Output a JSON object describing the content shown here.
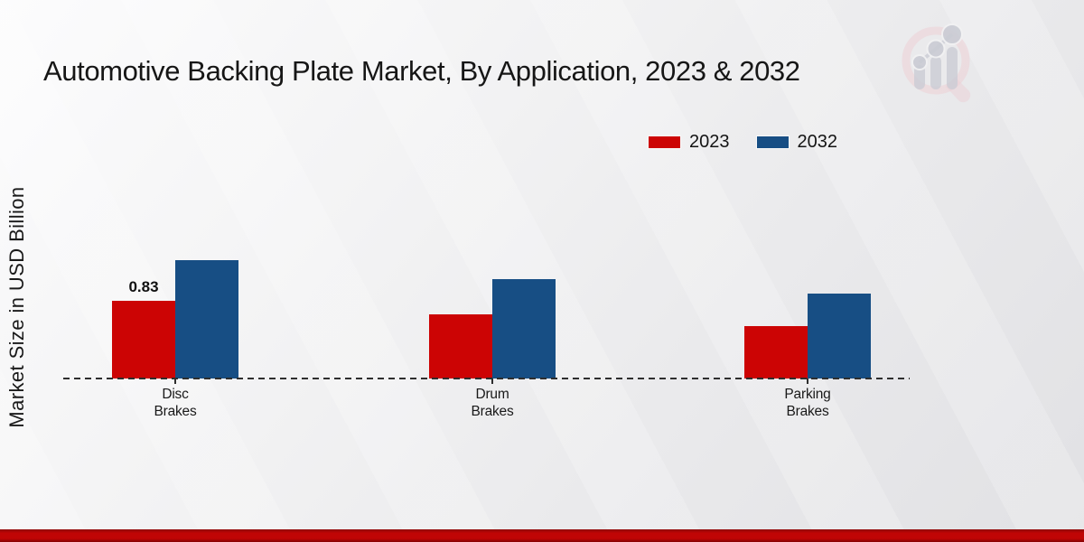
{
  "page": {
    "watermark_icon": "magnifier-bar-chart-logo"
  },
  "chart_data": {
    "type": "bar",
    "title": "Automotive Backing Plate Market, By Application, 2023 & 2032",
    "categories": [
      "Disc Brakes",
      "Drum Brakes",
      "Parking Brakes"
    ],
    "series": [
      {
        "name": "2023",
        "color": "#cc0404",
        "values": [
          0.83,
          0.68,
          0.56
        ]
      },
      {
        "name": "2032",
        "color": "#174e84",
        "values": [
          1.26,
          1.06,
          0.9
        ]
      }
    ],
    "annotations": [
      {
        "series_index": 0,
        "category_index": 0,
        "text": "0.83"
      }
    ],
    "xlabel": "",
    "ylabel": "Market Size in USD Billion",
    "ylim": [
      0,
      1.8
    ],
    "grid": false,
    "axis_ticks_visible": false,
    "baseline_style": "dashed",
    "legend_position": "top-right"
  },
  "colors": {
    "accent_red": "#cc0404",
    "accent_blue": "#174e84",
    "title_text": "#161616",
    "axis_text": "#1a1a1a",
    "baseline": "#2e2e2e",
    "footer_bar_top": "#8f0707",
    "footer_bar_main": "#c00505",
    "footer_bar_bottom": "#840303",
    "watermark_pink": "#ecd0d5",
    "watermark_gray": "#caccd4"
  }
}
